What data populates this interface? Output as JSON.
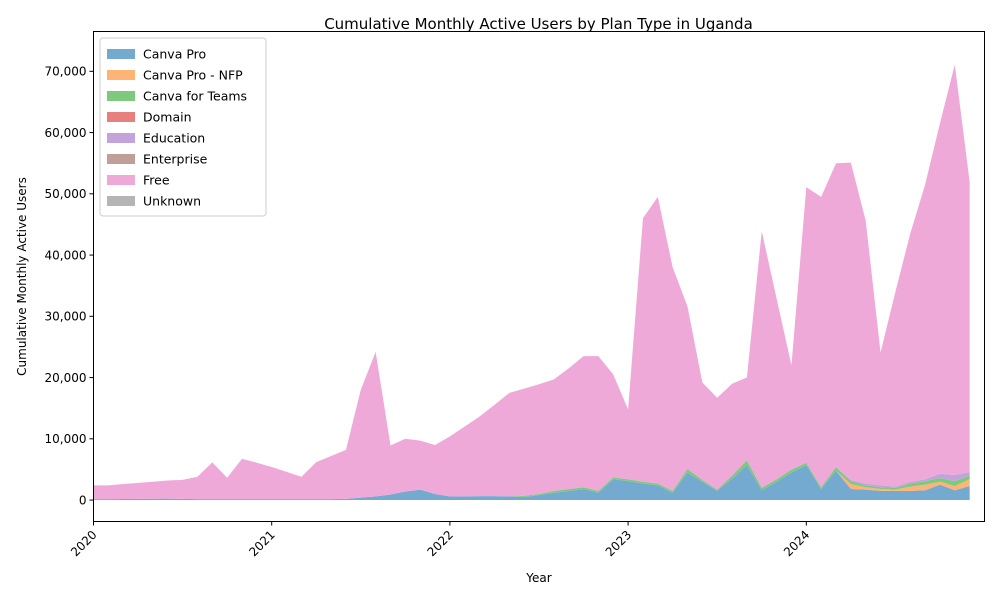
{
  "chart_data": {
    "type": "area",
    "stacked": true,
    "title": "Cumulative Monthly Active Users by Plan Type in Uganda",
    "xlabel": "Year",
    "ylabel": "Cumulative Monthly Active Users",
    "x_ticks": [
      "2020",
      "2021",
      "2022",
      "2023",
      "2024"
    ],
    "y_ticks": [
      "0",
      "10,000",
      "20,000",
      "30,000",
      "40,000",
      "50,000",
      "60,000",
      "70,000"
    ],
    "xlim": [
      2020.0,
      2025.0
    ],
    "ylim": [
      -3500,
      76500
    ],
    "grid": false,
    "legend_position": "upper-left",
    "colors": {
      "Canva Pro": "#74a9d0",
      "Canva Pro - NFP": "#ffb375",
      "Canva for Teams": "#7fc97f",
      "Domain": "#e87f7f",
      "Education": "#c3a3dc",
      "Enterprise": "#bf9f98",
      "Free": "#efa9d9",
      "Unknown": "#b5b5b5"
    },
    "x": [
      "2020-01",
      "2020-02",
      "2020-03",
      "2020-04",
      "2020-05",
      "2020-06",
      "2020-07",
      "2020-08",
      "2020-09",
      "2020-10",
      "2020-11",
      "2020-12",
      "2021-01",
      "2021-02",
      "2021-03",
      "2021-04",
      "2021-05",
      "2021-06",
      "2021-07",
      "2021-08",
      "2021-09",
      "2021-10",
      "2021-11",
      "2021-12",
      "2022-01",
      "2022-02",
      "2022-03",
      "2022-04",
      "2022-05",
      "2022-06",
      "2022-07",
      "2022-08",
      "2022-09",
      "2022-10",
      "2022-11",
      "2022-12",
      "2023-01",
      "2023-02",
      "2023-03",
      "2023-04",
      "2023-05",
      "2023-06",
      "2023-07",
      "2023-08",
      "2023-09",
      "2023-10",
      "2023-11",
      "2023-12",
      "2024-01",
      "2024-02",
      "2024-03",
      "2024-04",
      "2024-05",
      "2024-06",
      "2024-07",
      "2024-08",
      "2024-09",
      "2024-10",
      "2024-11",
      "2024-12"
    ],
    "series": [
      {
        "name": "Canva Pro",
        "values": [
          150,
          150,
          170,
          190,
          210,
          230,
          200,
          150,
          150,
          150,
          150,
          150,
          150,
          150,
          150,
          150,
          150,
          200,
          400,
          600,
          900,
          1400,
          1700,
          1000,
          600,
          600,
          650,
          650,
          600,
          500,
          800,
          1200,
          1500,
          1800,
          1200,
          3400,
          3100,
          2700,
          2400,
          1200,
          4500,
          3000,
          1500,
          3500,
          5700,
          1600,
          3000,
          4500,
          5700,
          1800,
          4800,
          1800,
          1700,
          1500,
          1500,
          1500,
          1600,
          2500,
          1600,
          2300
        ]
      },
      {
        "name": "Canva Pro - NFP",
        "values": [
          0,
          0,
          0,
          0,
          0,
          0,
          0,
          0,
          0,
          0,
          0,
          0,
          0,
          0,
          0,
          0,
          0,
          0,
          0,
          0,
          0,
          0,
          0,
          0,
          0,
          0,
          0,
          0,
          0,
          0,
          0,
          0,
          0,
          0,
          0,
          0,
          0,
          0,
          0,
          0,
          0,
          0,
          0,
          0,
          0,
          0,
          0,
          0,
          0,
          0,
          0,
          800,
          400,
          300,
          200,
          700,
          900,
          500,
          700,
          1100
        ]
      },
      {
        "name": "Canva for Teams",
        "values": [
          0,
          0,
          0,
          0,
          0,
          0,
          0,
          0,
          0,
          0,
          0,
          0,
          0,
          0,
          0,
          0,
          0,
          0,
          0,
          0,
          0,
          0,
          0,
          0,
          0,
          0,
          0,
          0,
          0,
          200,
          200,
          300,
          300,
          300,
          300,
          300,
          300,
          300,
          300,
          300,
          600,
          300,
          200,
          500,
          800,
          400,
          400,
          500,
          400,
          300,
          600,
          500,
          300,
          300,
          300,
          500,
          600,
          600,
          800,
          600
        ]
      },
      {
        "name": "Domain",
        "values": [
          0,
          0,
          0,
          0,
          0,
          0,
          0,
          0,
          0,
          0,
          0,
          0,
          0,
          0,
          0,
          0,
          0,
          0,
          0,
          0,
          0,
          0,
          0,
          0,
          0,
          0,
          0,
          0,
          0,
          0,
          0,
          0,
          0,
          0,
          0,
          0,
          0,
          0,
          0,
          0,
          0,
          0,
          0,
          0,
          0,
          0,
          0,
          0,
          0,
          0,
          0,
          0,
          0,
          0,
          0,
          0,
          0,
          0,
          0,
          0
        ]
      },
      {
        "name": "Education",
        "values": [
          0,
          0,
          0,
          0,
          0,
          0,
          0,
          0,
          0,
          0,
          0,
          0,
          0,
          0,
          0,
          0,
          0,
          0,
          0,
          0,
          0,
          0,
          0,
          0,
          0,
          0,
          0,
          0,
          0,
          0,
          0,
          0,
          0,
          0,
          0,
          0,
          0,
          0,
          0,
          0,
          0,
          0,
          0,
          0,
          0,
          0,
          0,
          0,
          0,
          0,
          0,
          200,
          300,
          300,
          200,
          300,
          300,
          700,
          1000,
          600
        ]
      },
      {
        "name": "Enterprise",
        "values": [
          0,
          0,
          0,
          0,
          0,
          0,
          0,
          0,
          0,
          0,
          0,
          0,
          0,
          0,
          0,
          0,
          0,
          0,
          0,
          0,
          0,
          0,
          0,
          0,
          0,
          0,
          0,
          0,
          0,
          0,
          0,
          0,
          0,
          0,
          0,
          0,
          0,
          0,
          0,
          0,
          0,
          0,
          0,
          0,
          0,
          0,
          0,
          0,
          0,
          0,
          0,
          0,
          0,
          0,
          0,
          0,
          0,
          0,
          0,
          0
        ]
      },
      {
        "name": "Free",
        "values": [
          2250,
          2250,
          2450,
          2610,
          2790,
          2970,
          3100,
          3650,
          6000,
          3500,
          6600,
          5950,
          5250,
          4450,
          3650,
          6050,
          7050,
          8000,
          17600,
          23600,
          8000,
          8600,
          8000,
          8000,
          9800,
          11400,
          13000,
          14900,
          16900,
          17500,
          17900,
          18200,
          19700,
          21400,
          22000,
          16800,
          11400,
          43000,
          46800,
          36500,
          26500,
          15900,
          15000,
          15000,
          13500,
          41900,
          29500,
          17000,
          45000,
          47400,
          49600,
          51800,
          42900,
          21700,
          31800,
          40500,
          48100,
          57200,
          67000,
          47300
        ]
      },
      {
        "name": "Unknown",
        "values": [
          0,
          0,
          0,
          0,
          0,
          0,
          0,
          0,
          0,
          0,
          0,
          0,
          0,
          0,
          0,
          0,
          0,
          0,
          0,
          0,
          0,
          0,
          0,
          0,
          0,
          0,
          0,
          0,
          0,
          0,
          0,
          0,
          0,
          0,
          0,
          0,
          0,
          0,
          0,
          0,
          0,
          0,
          0,
          0,
          0,
          0,
          0,
          0,
          0,
          0,
          0,
          0,
          0,
          0,
          0,
          0,
          0,
          0,
          0,
          0
        ]
      }
    ]
  }
}
